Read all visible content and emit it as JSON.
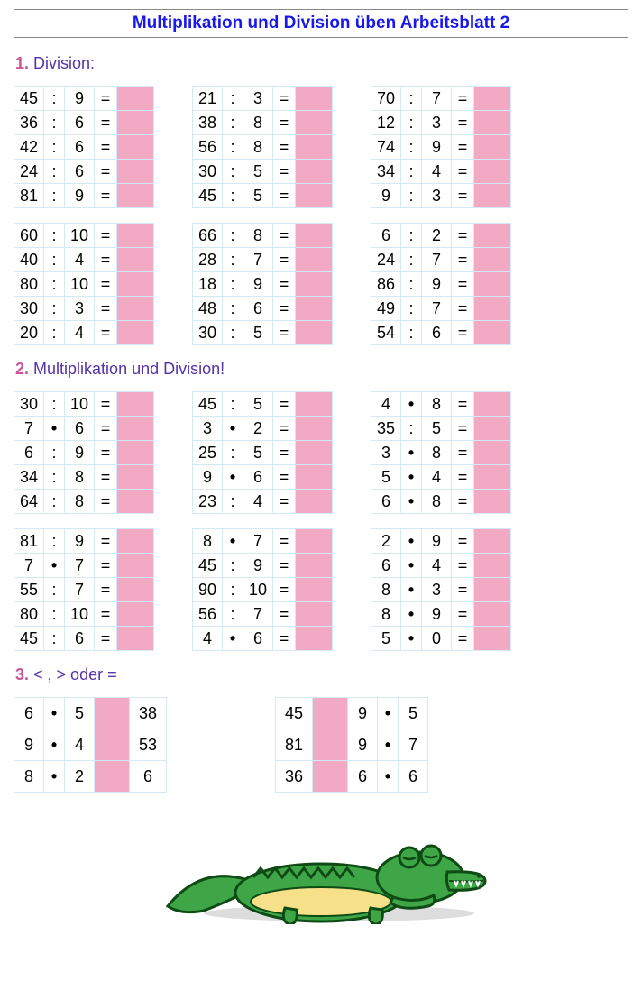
{
  "title": "Multiplikation und Division üben   Arbeitsblatt 2",
  "sections": {
    "s1": {
      "num": "1.",
      "txt": "Division:"
    },
    "s2": {
      "num": "2.",
      "txt": "Multiplikation und Division!"
    },
    "s3": {
      "num": "3.",
      "txt": "< , > oder ="
    }
  },
  "ops": {
    "div": ":",
    "mul": "•",
    "eq": "="
  },
  "s1blocks": [
    [
      [
        45,
        ":",
        9
      ],
      [
        36,
        ":",
        6
      ],
      [
        42,
        ":",
        6
      ],
      [
        24,
        ":",
        6
      ],
      [
        81,
        ":",
        9
      ]
    ],
    [
      [
        21,
        ":",
        3
      ],
      [
        38,
        ":",
        8
      ],
      [
        56,
        ":",
        8
      ],
      [
        30,
        ":",
        5
      ],
      [
        45,
        ":",
        5
      ]
    ],
    [
      [
        70,
        ":",
        7
      ],
      [
        12,
        ":",
        3
      ],
      [
        74,
        ":",
        9
      ],
      [
        34,
        ":",
        4
      ],
      [
        9,
        ":",
        3
      ]
    ],
    [
      [
        60,
        ":",
        10
      ],
      [
        40,
        ":",
        4
      ],
      [
        80,
        ":",
        10
      ],
      [
        30,
        ":",
        3
      ],
      [
        20,
        ":",
        4
      ]
    ],
    [
      [
        66,
        ":",
        8
      ],
      [
        28,
        ":",
        7
      ],
      [
        18,
        ":",
        9
      ],
      [
        48,
        ":",
        6
      ],
      [
        30,
        ":",
        5
      ]
    ],
    [
      [
        6,
        ":",
        2
      ],
      [
        24,
        ":",
        7
      ],
      [
        86,
        ":",
        9
      ],
      [
        49,
        ":",
        7
      ],
      [
        54,
        ":",
        6
      ]
    ]
  ],
  "s2blocks": [
    [
      [
        30,
        ":",
        10
      ],
      [
        7,
        "•",
        6
      ],
      [
        6,
        ":",
        9
      ],
      [
        34,
        ":",
        8
      ],
      [
        64,
        ":",
        8
      ]
    ],
    [
      [
        45,
        ":",
        5
      ],
      [
        3,
        "•",
        2
      ],
      [
        25,
        ":",
        5
      ],
      [
        9,
        "•",
        6
      ],
      [
        23,
        ":",
        4
      ]
    ],
    [
      [
        4,
        "•",
        8
      ],
      [
        35,
        ":",
        5
      ],
      [
        3,
        "•",
        8
      ],
      [
        5,
        "•",
        4
      ],
      [
        6,
        "•",
        8
      ]
    ],
    [
      [
        81,
        ":",
        9
      ],
      [
        7,
        "•",
        7
      ],
      [
        55,
        ":",
        7
      ],
      [
        80,
        ":",
        10
      ],
      [
        45,
        ":",
        6
      ]
    ],
    [
      [
        8,
        "•",
        7
      ],
      [
        45,
        ":",
        9
      ],
      [
        90,
        ":",
        10
      ],
      [
        56,
        ":",
        7
      ],
      [
        4,
        "•",
        6
      ]
    ],
    [
      [
        2,
        "•",
        9
      ],
      [
        6,
        "•",
        4
      ],
      [
        8,
        "•",
        3
      ],
      [
        8,
        "•",
        9
      ],
      [
        5,
        "•",
        0
      ]
    ]
  ],
  "s3left": [
    [
      6,
      "•",
      5,
      38
    ],
    [
      9,
      "•",
      4,
      53
    ],
    [
      8,
      "•",
      2,
      6
    ]
  ],
  "s3right": [
    [
      45,
      9,
      "•",
      5
    ],
    [
      81,
      9,
      "•",
      7
    ],
    [
      36,
      6,
      "•",
      6
    ]
  ]
}
